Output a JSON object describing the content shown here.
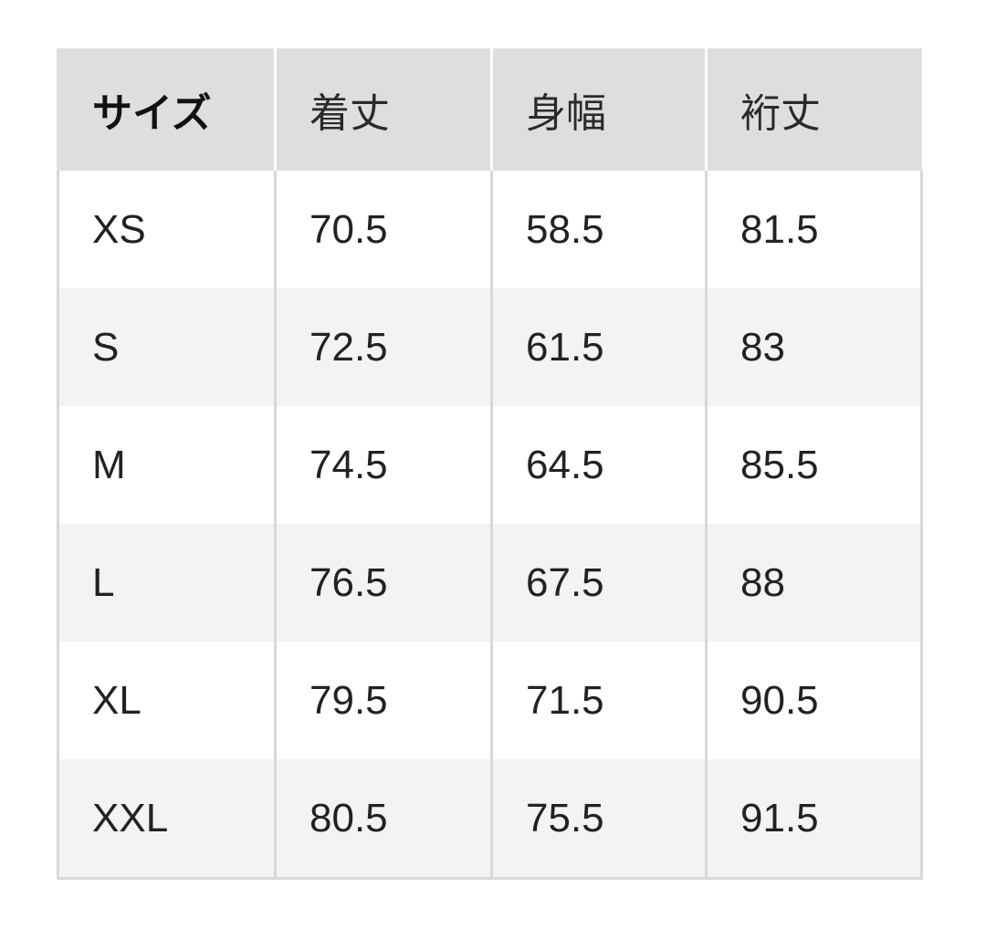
{
  "headers": [
    "サイズ",
    "着丈",
    "身幅",
    "裄丈"
  ],
  "rows": [
    [
      "XS",
      "70.5",
      "58.5",
      "81.5"
    ],
    [
      "S",
      "72.5",
      "61.5",
      "83"
    ],
    [
      "M",
      "74.5",
      "64.5",
      "85.5"
    ],
    [
      "L",
      "76.5",
      "67.5",
      "88"
    ],
    [
      "XL",
      "79.5",
      "71.5",
      "90.5"
    ],
    [
      "XXL",
      "80.5",
      "75.5",
      "91.5"
    ]
  ],
  "colors": {
    "header_bg": "#dedede",
    "alt_row_bg": "#f3f3f3",
    "border": "#d8d8d8"
  }
}
